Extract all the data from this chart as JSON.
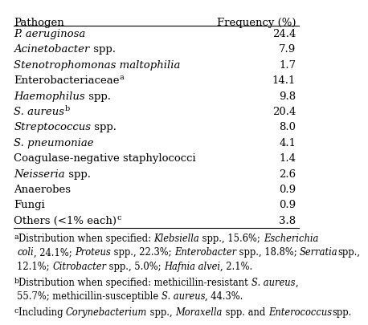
{
  "header": [
    "Pathogen",
    "Frequency (%)"
  ],
  "rows": [
    {
      "pathogen": "P. aeruginosa",
      "superscript": "",
      "frequency": "24.4",
      "parts": [
        [
          "P. aeruginosa",
          true
        ]
      ]
    },
    {
      "pathogen": "Acinetobacter spp.",
      "superscript": "",
      "frequency": "7.9",
      "parts": [
        [
          "Acinetobacter",
          true
        ],
        [
          " spp.",
          false
        ]
      ]
    },
    {
      "pathogen": "Stenotrophomonas maltophilia",
      "superscript": "",
      "frequency": "1.7",
      "parts": [
        [
          "Stenotrophomonas maltophilia",
          true
        ]
      ]
    },
    {
      "pathogen": "Enterobacteriaceae",
      "superscript": "a",
      "frequency": "14.1",
      "parts": [
        [
          "Enterobacteriaceae",
          false
        ]
      ]
    },
    {
      "pathogen": "Haemophilus spp.",
      "superscript": "",
      "frequency": "9.8",
      "parts": [
        [
          "Haemophilus",
          true
        ],
        [
          " spp.",
          false
        ]
      ]
    },
    {
      "pathogen": "S. aureus",
      "superscript": "b",
      "frequency": "20.4",
      "parts": [
        [
          "S. aureus",
          true
        ]
      ]
    },
    {
      "pathogen": "Streptococcus spp.",
      "superscript": "",
      "frequency": "8.0",
      "parts": [
        [
          "Streptococcus",
          true
        ],
        [
          " spp.",
          false
        ]
      ]
    },
    {
      "pathogen": "S. pneumoniae",
      "superscript": "",
      "frequency": "4.1",
      "parts": [
        [
          "S. pneumoniae",
          true
        ]
      ]
    },
    {
      "pathogen": "Coagulase-negative staphylococci",
      "superscript": "",
      "frequency": "1.4",
      "parts": [
        [
          "Coagulase-negative staphylococci",
          false
        ]
      ]
    },
    {
      "pathogen": "Neisseria spp.",
      "superscript": "",
      "frequency": "2.6",
      "parts": [
        [
          "Neisseria",
          true
        ],
        [
          " spp.",
          false
        ]
      ]
    },
    {
      "pathogen": "Anaerobes",
      "superscript": "",
      "frequency": "0.9",
      "parts": [
        [
          "Anaerobes",
          false
        ]
      ]
    },
    {
      "pathogen": "Fungi",
      "superscript": "",
      "frequency": "0.9",
      "parts": [
        [
          "Fungi",
          false
        ]
      ]
    },
    {
      "pathogen": "Others (<1% each)",
      "superscript": "c",
      "frequency": "3.8",
      "parts": [
        [
          "Others (<1% each)",
          false
        ]
      ]
    }
  ],
  "footnotes": [
    {
      "label": "a",
      "parts": [
        [
          "Distribution when specified: ",
          false
        ],
        [
          "Klebsiella",
          true
        ],
        [
          " spp., 15.6%; ",
          false
        ],
        [
          "Escherichia coli",
          true
        ],
        [
          ", 24.1%; ",
          false
        ],
        [
          "Proteus",
          true
        ],
        [
          " spp., 22.3%; ",
          false
        ],
        [
          "Enterobacter",
          true
        ],
        [
          " spp., 18.8%; ",
          false
        ],
        [
          "Serratia",
          true
        ],
        [
          " spp., 12.1%; ",
          false
        ],
        [
          "Citrobacter",
          true
        ],
        [
          " spp., 5.0%; ",
          false
        ],
        [
          "Hafnia alvei",
          true
        ],
        [
          ", 2.1%.",
          false
        ]
      ]
    },
    {
      "label": "b",
      "parts": [
        [
          "Distribution when specified: methicillin-resistant ",
          false
        ],
        [
          "S. aureus",
          true
        ],
        [
          ", 55.7%; methicillin-susceptible ",
          false
        ],
        [
          "S. aureus",
          true
        ],
        [
          ", 44.3%.",
          false
        ]
      ]
    },
    {
      "label": "c",
      "parts": [
        [
          "Including ",
          false
        ],
        [
          "Corynebacterium",
          true
        ],
        [
          " spp., ",
          false
        ],
        [
          "Moraxella",
          true
        ],
        [
          " spp. and ",
          false
        ],
        [
          "Enterococcus",
          true
        ],
        [
          " spp.",
          false
        ]
      ]
    }
  ],
  "bg_color": "#ffffff",
  "text_color": "#000000",
  "font_size": 9.5,
  "footnote_font_size": 8.3
}
